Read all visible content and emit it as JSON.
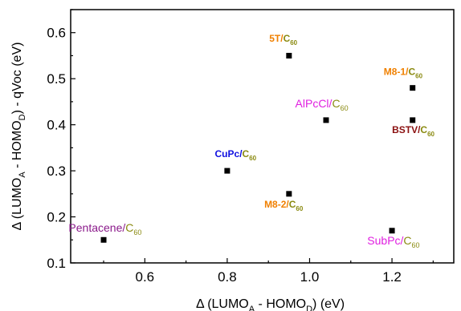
{
  "chart_data": {
    "type": "scatter",
    "title": "",
    "xlabel": {
      "prefix": "Δ (LUMO",
      "sub1": "A",
      "mid": " - HOMO",
      "sub2": "D",
      "suffix": ") (eV)"
    },
    "ylabel": {
      "prefix": "Δ (LUMO",
      "sub1": "A",
      "mid": " - HOMO",
      "sub2": "D",
      "suffix": ") - qVoc (eV)"
    },
    "xlim": [
      0.42,
      1.35
    ],
    "ylim": [
      0.1,
      0.65
    ],
    "xticks": [
      0.6,
      0.8,
      1.0,
      1.2
    ],
    "xtick_labels": [
      "0.6",
      "0.8",
      "1.0",
      "1.2"
    ],
    "yticks": [
      0.1,
      0.2,
      0.3,
      0.4,
      0.5,
      0.6
    ],
    "ytick_labels": [
      "0.1",
      "0.2",
      "0.3",
      "0.4",
      "0.5",
      "0.6"
    ],
    "grid": false,
    "marker_color": "#000000",
    "points": [
      {
        "donor": "Pentacene",
        "acceptor": "C",
        "sub": "60",
        "x": 0.5,
        "y": 0.15,
        "color": "#8b1a8b",
        "bold": false,
        "anchor": "start",
        "dx": -0.085,
        "dy": 0.018
      },
      {
        "donor": "CuPc",
        "acceptor": "C",
        "sub": "60",
        "x": 0.8,
        "y": 0.3,
        "color": "#1010e0",
        "bold": true,
        "anchor": "middle",
        "dx": -0.03,
        "dy": 0.03
      },
      {
        "donor": "M8-2",
        "acceptor": "C",
        "sub": "60",
        "x": 0.95,
        "y": 0.25,
        "color": "#f08000",
        "bold": true,
        "anchor": "start",
        "dx": -0.06,
        "dy": -0.03
      },
      {
        "donor": "5T",
        "acceptor": "C",
        "sub": "60",
        "x": 0.95,
        "y": 0.55,
        "color": "#f08000",
        "bold": true,
        "anchor": "start",
        "dx": -0.048,
        "dy": 0.03
      },
      {
        "donor": "AlPcCl",
        "acceptor": "C",
        "sub": "60",
        "x": 1.04,
        "y": 0.41,
        "color": "#e020e0",
        "bold": false,
        "anchor": "start",
        "dx": -0.075,
        "dy": 0.028
      },
      {
        "donor": "SubPc",
        "acceptor": "C",
        "sub": "60",
        "x": 1.2,
        "y": 0.17,
        "color": "#e020e0",
        "bold": false,
        "anchor": "start",
        "dx": -0.06,
        "dy": -0.03
      },
      {
        "donor": "M8-1",
        "acceptor": "C",
        "sub": "60",
        "x": 1.25,
        "y": 0.48,
        "color": "#f08000",
        "bold": true,
        "anchor": "start",
        "dx": -0.07,
        "dy": 0.028
      },
      {
        "donor": "BSTV",
        "acceptor": "C",
        "sub": "60",
        "x": 1.25,
        "y": 0.41,
        "color": "#8b1010",
        "bold": true,
        "anchor": "start",
        "dx": -0.05,
        "dy": -0.028
      }
    ],
    "acceptor_color": "#8a8a10"
  }
}
